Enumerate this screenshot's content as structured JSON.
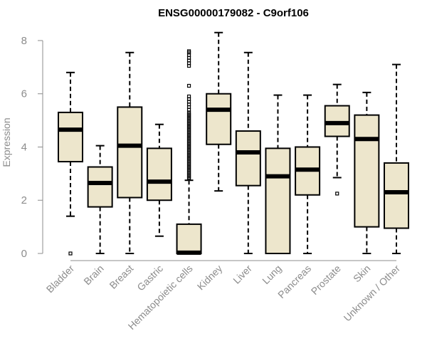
{
  "chart_data": {
    "type": "boxplot",
    "title": "ENSG00000179082 - C9orf106",
    "xlabel": "",
    "ylabel": "Expression",
    "ylim": [
      0,
      8.4
    ],
    "yticks": [
      0,
      2,
      4,
      6,
      8
    ],
    "box_color": "#ede6cc",
    "categories": [
      "Bladder",
      "Brain",
      "Breast",
      "Gastric",
      "Hematopoietic cells",
      "Kidney",
      "Liver",
      "Lung",
      "Pancreas",
      "Prostate",
      "Skin",
      "Unknown / Other"
    ],
    "series": [
      {
        "name": "Bladder",
        "whisker_low": 1.4,
        "q1": 3.45,
        "median": 4.65,
        "q3": 5.3,
        "whisker_high": 6.8,
        "outliers": [
          0.0
        ]
      },
      {
        "name": "Brain",
        "whisker_low": 0.0,
        "q1": 1.75,
        "median": 2.65,
        "q3": 3.25,
        "whisker_high": 4.05,
        "outliers": []
      },
      {
        "name": "Breast",
        "whisker_low": 0.0,
        "q1": 2.1,
        "median": 4.05,
        "q3": 5.5,
        "whisker_high": 7.55,
        "outliers": []
      },
      {
        "name": "Gastric",
        "whisker_low": 0.65,
        "q1": 2.0,
        "median": 2.7,
        "q3": 3.95,
        "whisker_high": 4.85,
        "outliers": []
      },
      {
        "name": "Hematopoietic cells",
        "whisker_low": 0.0,
        "q1": 0.0,
        "median": 0.03,
        "q3": 1.1,
        "whisker_high": 2.75,
        "outliers": [
          2.8,
          2.85,
          2.9,
          2.95,
          3.0,
          3.05,
          3.1,
          3.15,
          3.2,
          3.25,
          3.3,
          3.35,
          3.4,
          3.45,
          3.5,
          3.55,
          3.6,
          3.65,
          3.7,
          3.75,
          3.8,
          3.85,
          3.9,
          3.95,
          4.0,
          4.05,
          4.1,
          4.15,
          4.2,
          4.25,
          4.3,
          4.35,
          4.4,
          4.45,
          4.5,
          4.55,
          4.6,
          4.65,
          4.7,
          4.75,
          4.8,
          4.85,
          4.9,
          4.95,
          5.0,
          5.05,
          5.1,
          5.15,
          5.2,
          5.25,
          5.3,
          5.4,
          5.5,
          5.6,
          5.7,
          5.8,
          5.9,
          6.3,
          7.05,
          7.15,
          7.25,
          7.35,
          7.45,
          7.55,
          7.6
        ]
      },
      {
        "name": "Kidney",
        "whisker_low": 2.35,
        "q1": 4.1,
        "median": 5.4,
        "q3": 6.0,
        "whisker_high": 8.3,
        "outliers": []
      },
      {
        "name": "Liver",
        "whisker_low": 0.0,
        "q1": 2.55,
        "median": 3.8,
        "q3": 4.6,
        "whisker_high": 7.55,
        "outliers": []
      },
      {
        "name": "Lung",
        "whisker_low": 0.0,
        "q1": 0.0,
        "median": 2.9,
        "q3": 3.95,
        "whisker_high": 5.95,
        "outliers": []
      },
      {
        "name": "Pancreas",
        "whisker_low": 0.0,
        "q1": 2.2,
        "median": 3.15,
        "q3": 4.0,
        "whisker_high": 5.95,
        "outliers": []
      },
      {
        "name": "Prostate",
        "whisker_low": 2.85,
        "q1": 4.4,
        "median": 4.9,
        "q3": 5.55,
        "whisker_high": 6.35,
        "outliers": [
          2.25
        ]
      },
      {
        "name": "Skin",
        "whisker_low": 0.0,
        "q1": 1.0,
        "median": 4.3,
        "q3": 5.2,
        "whisker_high": 6.05,
        "outliers": []
      },
      {
        "name": "Unknown / Other",
        "whisker_low": 0.0,
        "q1": 0.95,
        "median": 2.3,
        "q3": 3.4,
        "whisker_high": 7.1,
        "outliers": []
      }
    ]
  }
}
